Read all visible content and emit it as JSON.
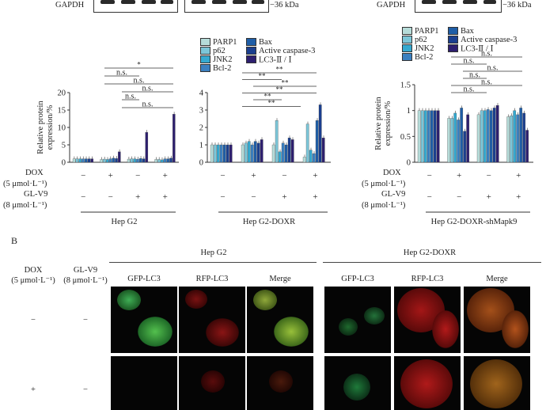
{
  "top_blots": {
    "gapdh_label": "GAPDH",
    "kda_label": "−36 kDa"
  },
  "legend": {
    "items": [
      {
        "label": "PARP1",
        "color": "#b6dcd9"
      },
      {
        "label": "p62",
        "color": "#7cc6d8"
      },
      {
        "label": "JNK2",
        "color": "#35a9d0"
      },
      {
        "label": "Bcl-2",
        "color": "#3b80c0"
      },
      {
        "label": "Bax",
        "color": "#1f5ea7"
      },
      {
        "label": "Active caspase-3",
        "color": "#1b3f8f"
      },
      {
        "label": "LC3-Ⅱ / Ⅰ",
        "color": "#2d1f6f"
      }
    ]
  },
  "conditions": {
    "dox_label": "DOX",
    "dox_unit": "(5 μmol·L⁻¹)",
    "glv9_label": "GL-V9",
    "glv9_unit": "(8 μmol·L⁻¹)",
    "dox_row": [
      "−",
      "+",
      "−",
      "+"
    ],
    "glv9_row": [
      "−",
      "−",
      "+",
      "+"
    ]
  },
  "chart_data": [
    {
      "type": "bar",
      "title": "Hep G2",
      "ylabel": "Relative protein expression/%",
      "ylim": [
        0,
        20
      ],
      "yticks": [
        0,
        5,
        10,
        15,
        20
      ],
      "categories": [
        "DOX− GL-V9−",
        "DOX+ GL-V9−",
        "DOX− GL-V9+",
        "DOX+ GL-V9+"
      ],
      "series": [
        {
          "name": "PARP1",
          "values": [
            1.0,
            0.8,
            0.9,
            0.8
          ]
        },
        {
          "name": "p62",
          "values": [
            1.0,
            0.9,
            1.0,
            0.8
          ]
        },
        {
          "name": "JNK2",
          "values": [
            1.0,
            0.8,
            1.0,
            0.7
          ]
        },
        {
          "name": "Bcl-2",
          "values": [
            1.0,
            1.0,
            0.9,
            1.0
          ]
        },
        {
          "name": "Bax",
          "values": [
            1.0,
            1.2,
            1.1,
            1.0
          ]
        },
        {
          "name": "Active caspase-3",
          "values": [
            1.0,
            1.1,
            1.0,
            1.2
          ]
        },
        {
          "name": "LC3-Ⅱ / Ⅰ",
          "values": [
            1.0,
            3.0,
            8.6,
            13.8
          ]
        }
      ],
      "annotations": [
        "*",
        "n.s.",
        "n.s.",
        "n.s.",
        "n.s.",
        "n.s."
      ]
    },
    {
      "type": "bar",
      "title": "Hep G2-DOXR",
      "ylabel": "",
      "ylim": [
        0,
        4
      ],
      "yticks": [
        0,
        1,
        2,
        3,
        4
      ],
      "categories": [
        "DOX− GL-V9−",
        "DOX+ GL-V9−",
        "DOX− GL-V9+",
        "DOX+ GL-V9+"
      ],
      "series": [
        {
          "name": "PARP1",
          "values": [
            1.0,
            1.0,
            1.0,
            0.3
          ]
        },
        {
          "name": "p62",
          "values": [
            1.0,
            1.1,
            2.4,
            2.2
          ]
        },
        {
          "name": "JNK2",
          "values": [
            1.0,
            1.2,
            0.6,
            0.7
          ]
        },
        {
          "name": "Bcl-2",
          "values": [
            1.0,
            1.0,
            1.1,
            0.5
          ]
        },
        {
          "name": "Bax",
          "values": [
            1.0,
            1.2,
            1.0,
            2.4
          ]
        },
        {
          "name": "Active caspase-3",
          "values": [
            1.0,
            1.1,
            1.4,
            3.3
          ]
        },
        {
          "name": "LC3-Ⅱ / Ⅰ",
          "values": [
            1.0,
            1.3,
            1.3,
            1.4
          ]
        }
      ],
      "annotations": [
        "**",
        "**",
        "**",
        "**",
        "**",
        "**"
      ]
    },
    {
      "type": "bar",
      "title": "Hep G2-DOXR-shMapk9",
      "ylabel": "Relative protein expression/%",
      "ylim": [
        0,
        1.5
      ],
      "yticks": [
        0,
        0.5,
        1.0,
        1.5
      ],
      "categories": [
        "DOX− GL-V9−",
        "DOX+ GL-V9−",
        "DOX− GL-V9+",
        "DOX+ GL-V9+"
      ],
      "series": [
        {
          "name": "PARP1",
          "values": [
            1.0,
            0.85,
            0.92,
            0.88
          ]
        },
        {
          "name": "p62",
          "values": [
            1.0,
            0.85,
            1.0,
            0.9
          ]
        },
        {
          "name": "JNK2",
          "values": [
            1.0,
            0.95,
            1.0,
            1.0
          ]
        },
        {
          "name": "Bcl-2",
          "values": [
            1.0,
            0.82,
            1.02,
            0.92
          ]
        },
        {
          "name": "Bax",
          "values": [
            1.0,
            1.05,
            1.0,
            1.05
          ]
        },
        {
          "name": "Active caspase-3",
          "values": [
            1.0,
            0.6,
            1.05,
            0.95
          ]
        },
        {
          "name": "LC3-Ⅱ / Ⅰ",
          "values": [
            1.0,
            0.92,
            1.1,
            0.62
          ]
        }
      ],
      "annotations": [
        "n.s.",
        "n.s.",
        "n.s.",
        "n.s.",
        "n.s.",
        "n.s."
      ]
    }
  ],
  "panel_b": {
    "label": "B",
    "dox_label": "DOX",
    "dox_unit": "(5 μmol·L⁻¹)",
    "glv9_label": "GL-V9",
    "glv9_unit": "(8 μmol·L⁻¹)",
    "group1": "Hep G2",
    "group2": "Hep G2-DOXR",
    "columns": [
      "GFP-LC3",
      "RFP-LC3",
      "Merge",
      "GFP-LC3",
      "RFP-LC3",
      "Merge"
    ],
    "row1": {
      "dox": "−",
      "glv9": "−"
    },
    "row2": {
      "dox": "+",
      "glv9": "−"
    }
  }
}
